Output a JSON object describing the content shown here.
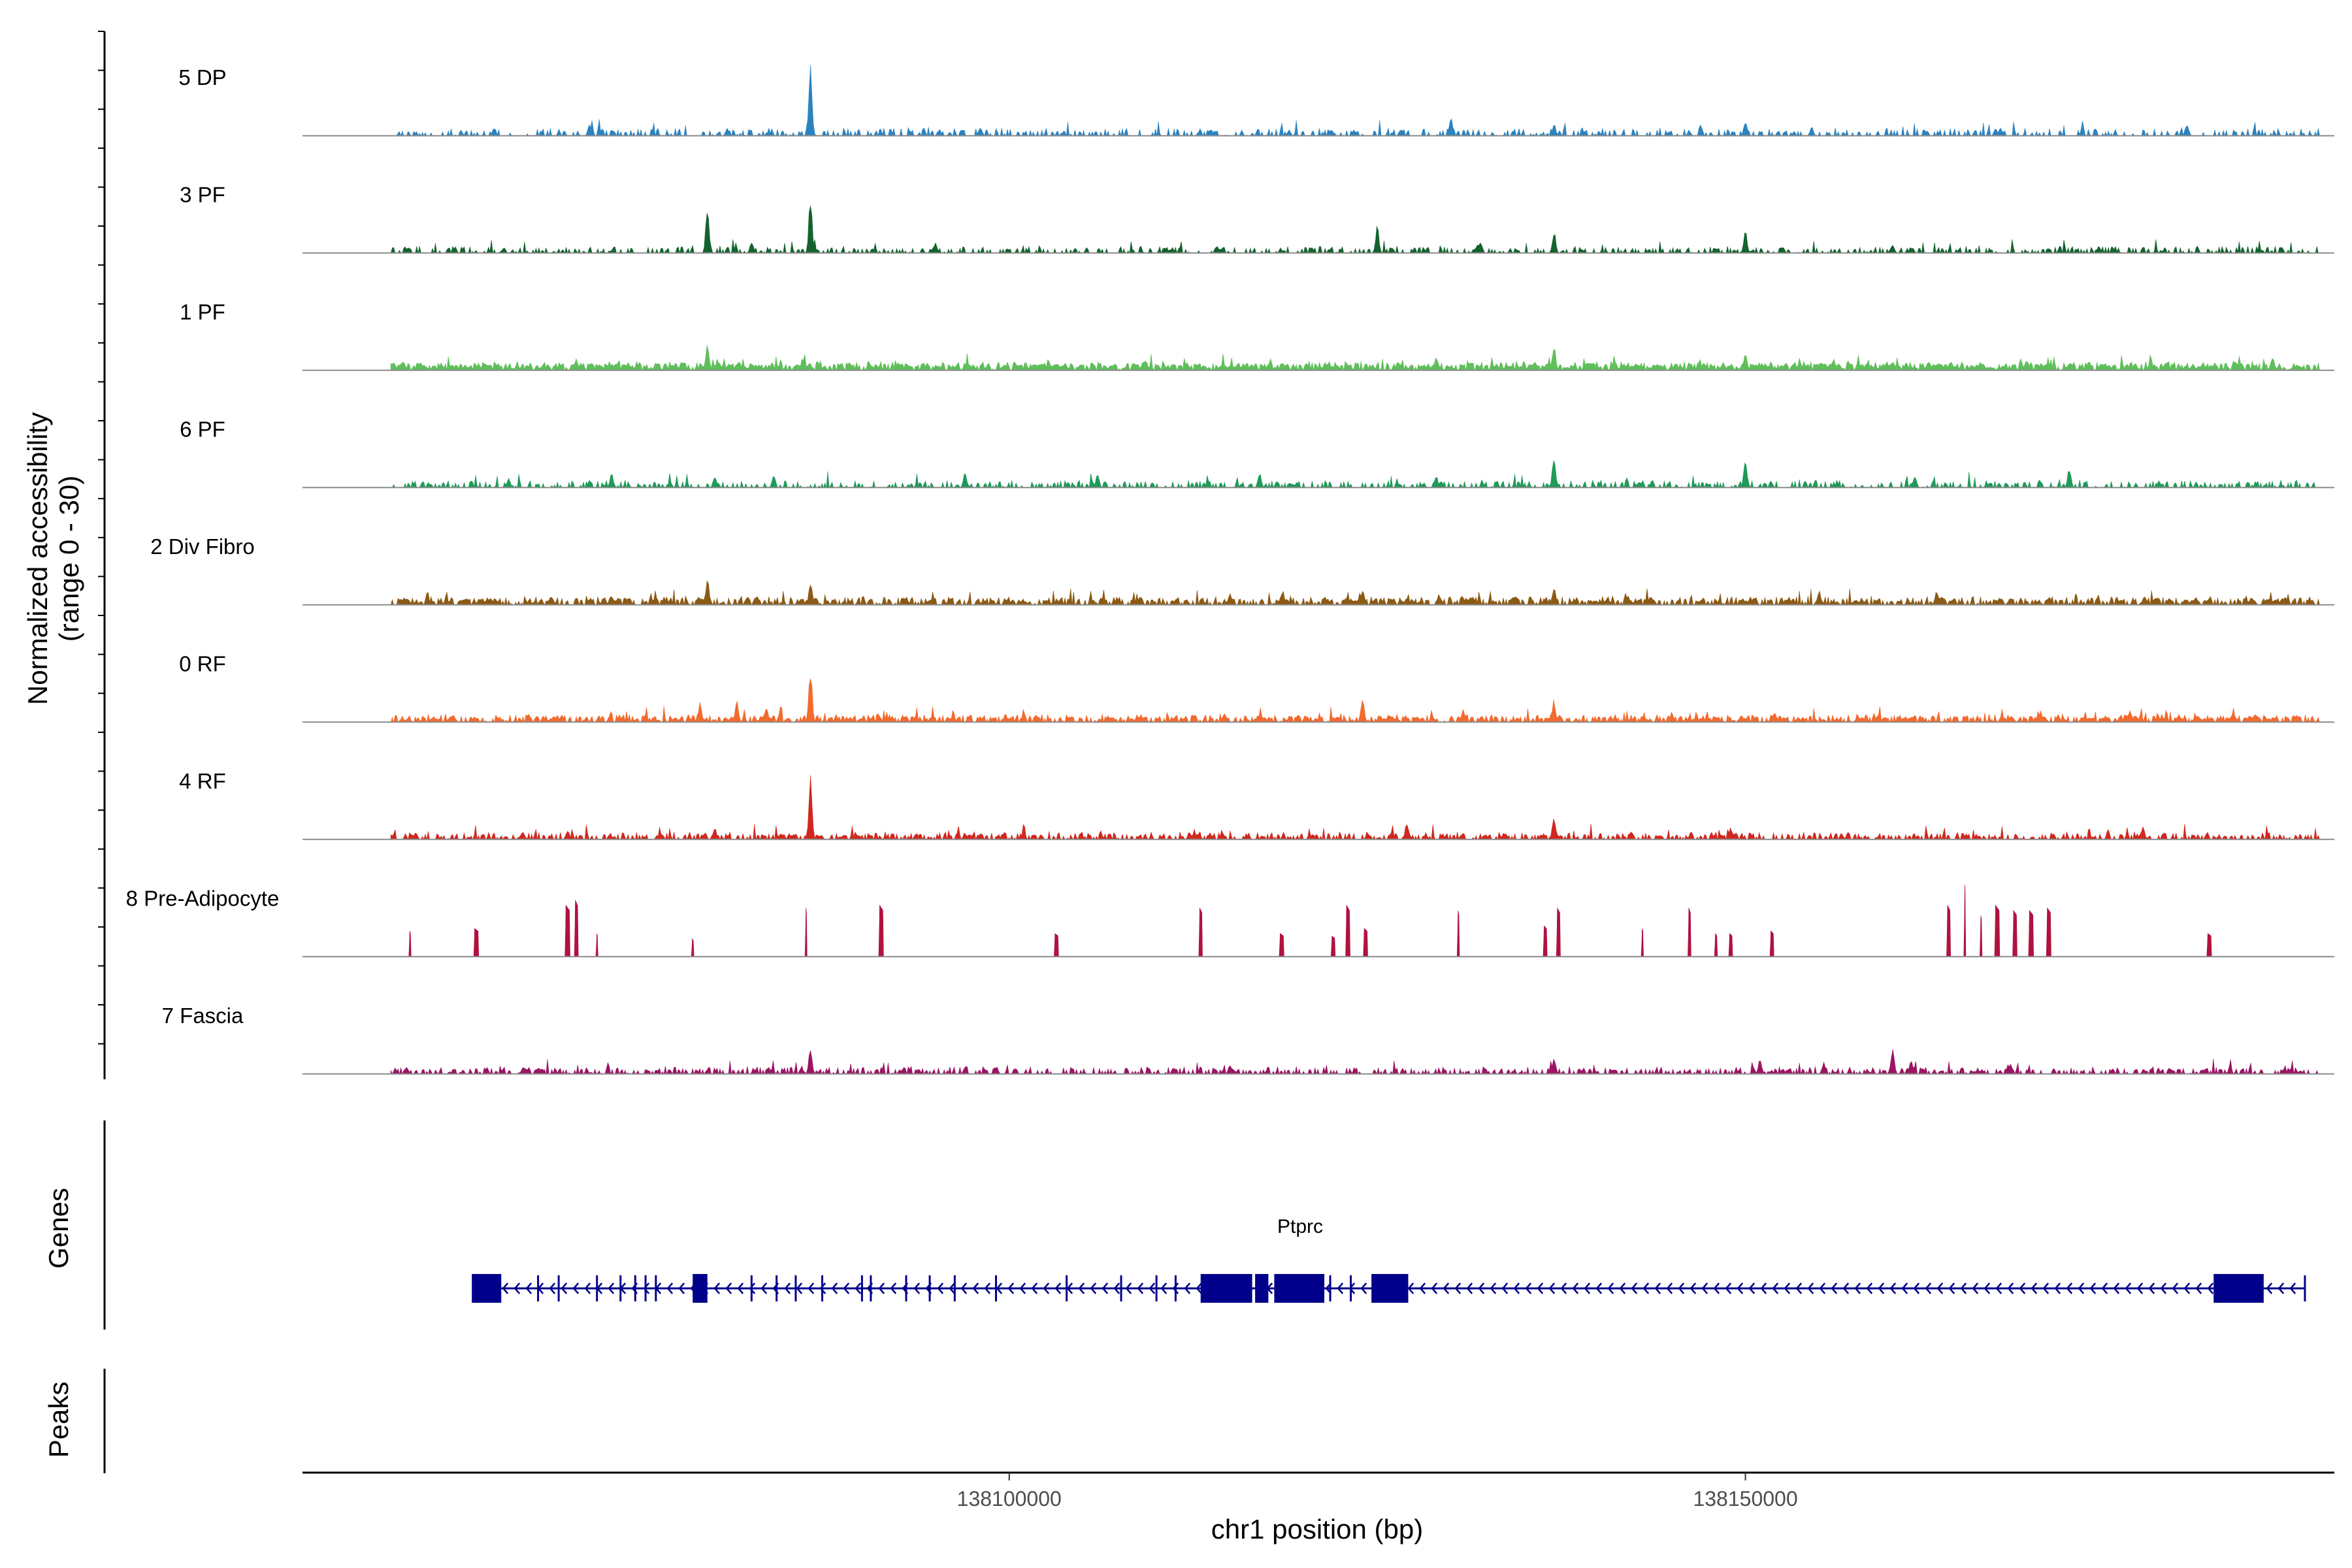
{
  "chart_data": {
    "type": "area",
    "title": "",
    "xlabel": "chr1 position (bp)",
    "ylabel": "Normalized accessibility (range 0 - 30)",
    "ylabel_lines": [
      "Normalized accessibility",
      "(range 0 - 30)"
    ],
    "ylim": [
      0,
      30
    ],
    "xlim": [
      138052000,
      138190000
    ],
    "x_ticks": [
      138100000,
      138150000
    ],
    "x_tick_labels": [
      "138100000",
      "138150000"
    ],
    "signal_range_bp": [
      138058000,
      138189000
    ],
    "series": [
      {
        "name": "5 DP",
        "color": "#2b83c0",
        "style": "sparse",
        "density": 0.42,
        "base": 1.8,
        "noise": 2.4,
        "peaks": [
          [
            138065000,
            3
          ],
          [
            138071500,
            5
          ],
          [
            138086500,
            28
          ],
          [
            138098000,
            3
          ],
          [
            138119000,
            2.5
          ],
          [
            138130000,
            8
          ],
          [
            138137000,
            5
          ],
          [
            138150000,
            6
          ],
          [
            138154500,
            4
          ],
          [
            138167000,
            3
          ],
          [
            138180000,
            5
          ]
        ]
      },
      {
        "name": "3 PF",
        "color": "#14632f",
        "style": "sparse",
        "density": 0.48,
        "base": 1.6,
        "noise": 2.2,
        "peaks": [
          [
            138079500,
            19
          ],
          [
            138082500,
            5
          ],
          [
            138086500,
            23
          ],
          [
            138095000,
            4
          ],
          [
            138125000,
            11
          ],
          [
            138132000,
            5
          ],
          [
            138137000,
            9
          ],
          [
            138150000,
            10
          ],
          [
            138160000,
            4
          ],
          [
            138174000,
            3
          ]
        ]
      },
      {
        "name": "1 PF",
        "color": "#5fbf5a",
        "style": "dense",
        "density": 0.92,
        "base": 2.2,
        "noise": 2.4,
        "peaks": [
          [
            138079500,
            12
          ],
          [
            138086000,
            4
          ],
          [
            138112000,
            3
          ],
          [
            138129000,
            5
          ],
          [
            138137000,
            10
          ],
          [
            138150000,
            7
          ],
          [
            138160000,
            4
          ]
        ]
      },
      {
        "name": "6 PF",
        "color": "#1f9a58",
        "style": "sparse",
        "density": 0.5,
        "base": 1.5,
        "noise": 2.6,
        "peaks": [
          [
            138066000,
            4
          ],
          [
            138073000,
            6
          ],
          [
            138080000,
            5
          ],
          [
            138084000,
            5
          ],
          [
            138097000,
            7
          ],
          [
            138106000,
            6
          ],
          [
            138117000,
            6
          ],
          [
            138129000,
            5
          ],
          [
            138137000,
            13
          ],
          [
            138150000,
            12
          ],
          [
            138161500,
            5
          ],
          [
            138172000,
            8
          ]
        ]
      },
      {
        "name": "2 Div Fibro",
        "color": "#8c5a14",
        "style": "dense",
        "density": 0.78,
        "base": 2.0,
        "noise": 2.6,
        "peaks": [
          [
            138079500,
            11
          ],
          [
            138086500,
            10
          ],
          [
            138115000,
            5
          ],
          [
            138124000,
            7
          ],
          [
            138137000,
            8
          ],
          [
            138142000,
            4
          ],
          [
            138155000,
            6
          ],
          [
            138163000,
            6
          ]
        ]
      },
      {
        "name": "0 RF",
        "color": "#f26a2e",
        "style": "dense",
        "density": 0.8,
        "base": 1.8,
        "noise": 2.4,
        "peaks": [
          [
            138079000,
            8
          ],
          [
            138081500,
            9
          ],
          [
            138083500,
            6
          ],
          [
            138086500,
            22
          ],
          [
            138124000,
            11
          ],
          [
            138137000,
            9
          ],
          [
            138145000,
            4
          ],
          [
            138152000,
            4
          ],
          [
            138176000,
            3
          ]
        ]
      },
      {
        "name": "4 RF",
        "color": "#d0281e",
        "style": "dense",
        "density": 0.66,
        "base": 1.7,
        "noise": 2.4,
        "peaks": [
          [
            138070000,
            4
          ],
          [
            138080000,
            5
          ],
          [
            138086500,
            26
          ],
          [
            138127000,
            7
          ],
          [
            138137000,
            10
          ],
          [
            138149000,
            5
          ],
          [
            138177000,
            5
          ]
        ]
      },
      {
        "name": "8 Pre-Adipocyte",
        "color": "#b0123f",
        "style": "blocky",
        "peaks": [
          [
            138059300,
            10
          ],
          [
            138063800,
            11
          ],
          [
            138070000,
            20
          ],
          [
            138070600,
            22
          ],
          [
            138072000,
            9
          ],
          [
            138078500,
            7
          ],
          [
            138086200,
            19
          ],
          [
            138091300,
            20
          ],
          [
            138103200,
            9
          ],
          [
            138113000,
            19
          ],
          [
            138118500,
            9
          ],
          [
            138122000,
            8
          ],
          [
            138123000,
            20
          ],
          [
            138124200,
            11
          ],
          [
            138130500,
            18
          ],
          [
            138136400,
            12
          ],
          [
            138137300,
            19
          ],
          [
            138143000,
            11
          ],
          [
            138146200,
            19
          ],
          [
            138148000,
            9
          ],
          [
            138149000,
            9
          ],
          [
            138151800,
            10
          ],
          [
            138163800,
            20
          ],
          [
            138164900,
            28
          ],
          [
            138166000,
            16
          ],
          [
            138167100,
            20
          ],
          [
            138168300,
            18
          ],
          [
            138169400,
            18
          ],
          [
            138170600,
            19
          ],
          [
            138181500,
            9
          ]
        ]
      },
      {
        "name": "7 Fascia",
        "color": "#9c1464",
        "style": "sparse",
        "density": 0.58,
        "base": 1.6,
        "noise": 2.4,
        "peaks": [
          [
            138086500,
            11
          ],
          [
            138115000,
            4
          ],
          [
            138137000,
            6
          ],
          [
            138151000,
            6
          ],
          [
            138160000,
            11
          ],
          [
            138168000,
            4
          ]
        ]
      }
    ]
  },
  "genes_panel": {
    "title": "Genes",
    "gene_name": "Ptprc",
    "strand": "-",
    "span_bp": [
      138063500,
      138188000
    ],
    "exons_bp": [
      [
        138063500,
        138065500
      ],
      [
        138078500,
        138079500
      ],
      [
        138113000,
        138116500
      ],
      [
        138116700,
        138117600
      ],
      [
        138118000,
        138121400
      ],
      [
        138124600,
        138127100
      ],
      [
        138181800,
        138185200
      ]
    ],
    "small_exons_bp": [
      138068000,
      138069400,
      138072000,
      138073600,
      138074600,
      138075300,
      138076000,
      138079200,
      138082500,
      138084200,
      138085500,
      138087300,
      138090000,
      138090600,
      138093000,
      138094600,
      138096300,
      138099100,
      138103900,
      138107600,
      138110000,
      138111300,
      138121800,
      138123200
    ],
    "color": "#00008b"
  },
  "peaks_panel": {
    "title": "Peaks"
  }
}
